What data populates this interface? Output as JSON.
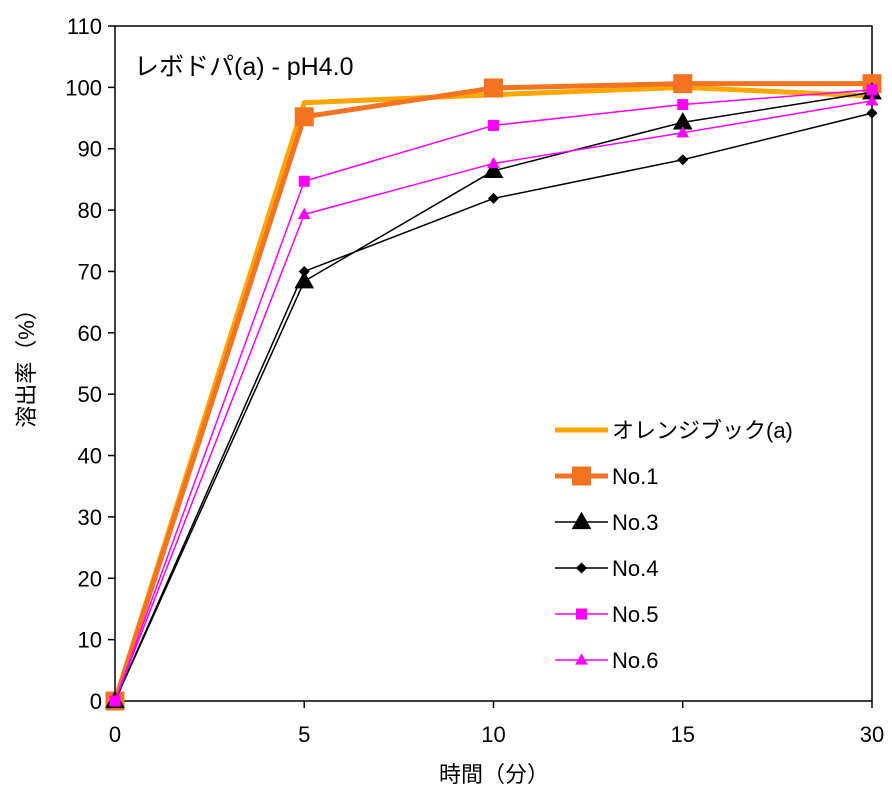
{
  "chart_data": {
    "type": "line",
    "title": "レボドパ(a) - pH4.0",
    "xlabel": "時間（分）",
    "ylabel": "溶出率（%）",
    "categories": [
      "0",
      "5",
      "10",
      "15",
      "30"
    ],
    "ylim": [
      0,
      110
    ],
    "yticks": [
      "0",
      "10",
      "20",
      "30",
      "40",
      "50",
      "60",
      "70",
      "80",
      "90",
      "100",
      "110"
    ],
    "grid": false,
    "legend_position": "bottom-right",
    "series": [
      {
        "name": "オレンジブック(a)",
        "values": [
          0,
          97.5,
          98.8,
          100.0,
          98.6
        ],
        "color": "#ffa500",
        "marker": "none"
      },
      {
        "name": "No.1",
        "values": [
          0,
          95.2,
          99.9,
          100.6,
          100.6
        ],
        "color": "#f47320",
        "marker": "square"
      },
      {
        "name": "No.3",
        "values": [
          0,
          68.4,
          86.4,
          94.3,
          99.2
        ],
        "color": "#000000",
        "marker": "triangle"
      },
      {
        "name": "No.4",
        "values": [
          0,
          70.0,
          81.9,
          88.2,
          95.8
        ],
        "color": "#000000",
        "marker": "diamond"
      },
      {
        "name": "No.5",
        "values": [
          0,
          84.7,
          93.8,
          97.2,
          99.6
        ],
        "color": "#ff00ff",
        "marker": "square"
      },
      {
        "name": "No.6",
        "values": [
          0,
          79.3,
          87.6,
          92.6,
          97.8
        ],
        "color": "#ff00ff",
        "marker": "triangle"
      }
    ]
  }
}
